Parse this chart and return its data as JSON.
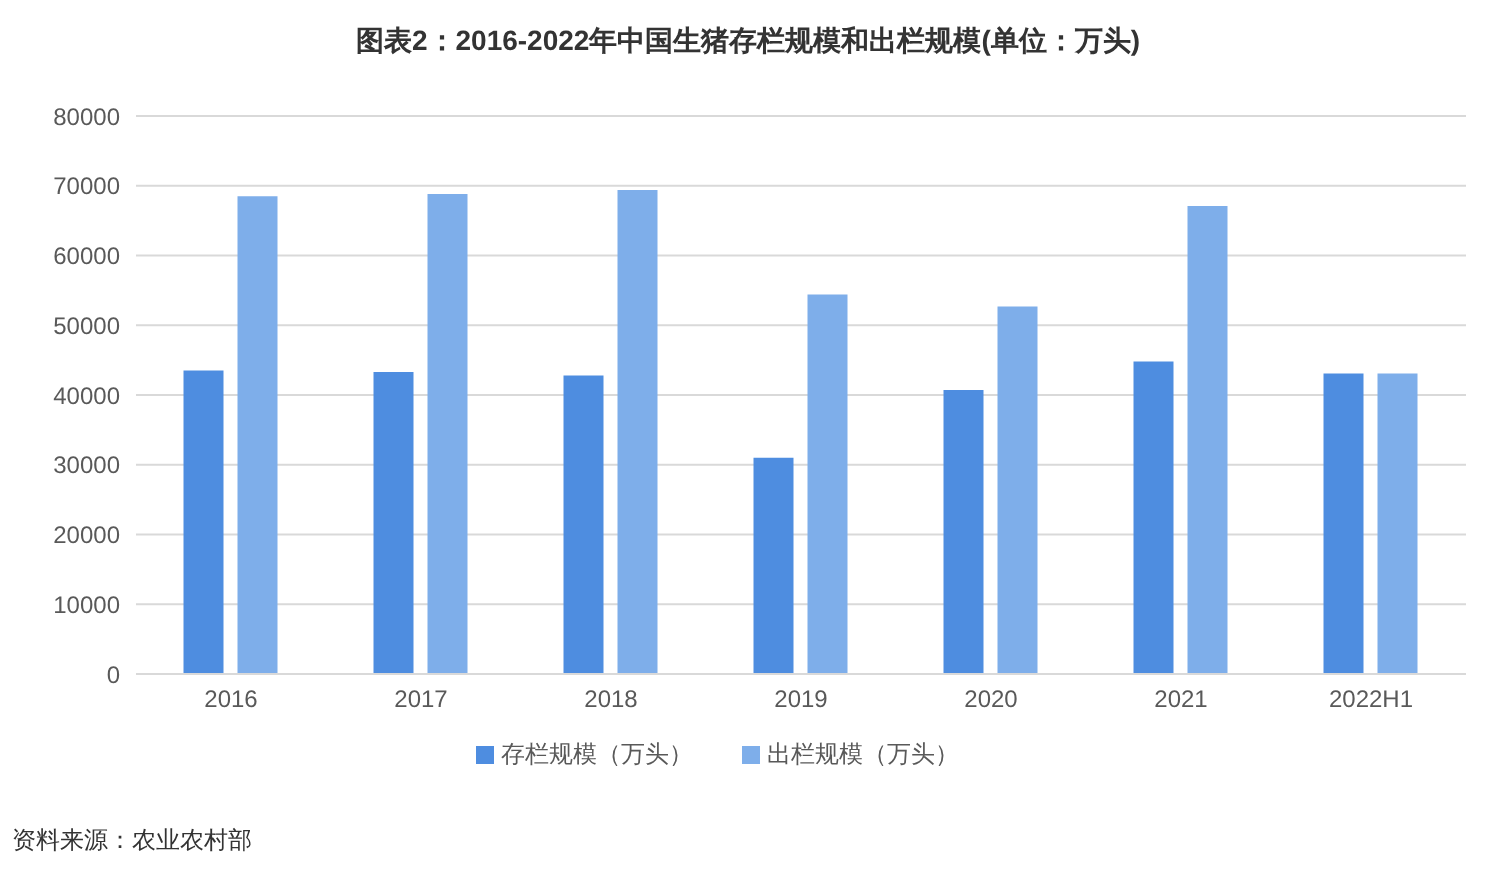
{
  "chart_data": {
    "type": "bar",
    "title": "图表2：2016-2022年中国生猪存栏规模和出栏规模(单位：万头)",
    "categories": [
      "2016",
      "2017",
      "2018",
      "2019",
      "2020",
      "2021",
      "2022H1"
    ],
    "series": [
      {
        "name": "存栏规模（万头）",
        "color": "#4e8de0",
        "values": [
          43500,
          43300,
          42800,
          31000,
          40700,
          44800,
          43100
        ]
      },
      {
        "name": "出栏规模（万头）",
        "color": "#7eaeea",
        "values": [
          68500,
          68800,
          69400,
          54400,
          52700,
          67100,
          43100
        ]
      }
    ],
    "ylim": [
      0,
      80000
    ],
    "yticks": [
      0,
      10000,
      20000,
      30000,
      40000,
      50000,
      60000,
      70000,
      80000
    ],
    "grid": "y",
    "legend": "bottom",
    "annotations": [
      "资料来源：农业农村部"
    ]
  }
}
